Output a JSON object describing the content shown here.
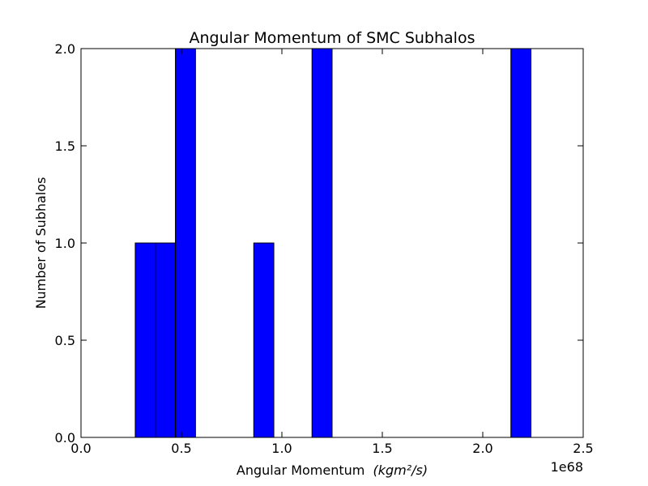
{
  "chart_data": {
    "type": "bar",
    "title": "Angular Momentum of SMC Subhalos",
    "xlabel": "Angular Momentum",
    "xlabel_math": "(kgm²/s)",
    "ylabel": "Number of Subhalos",
    "x_offset_label": "1e68",
    "xlim": [
      0.0,
      2.5
    ],
    "ylim": [
      0.0,
      2.0
    ],
    "x_ticks": [
      "0.0",
      "0.5",
      "1.0",
      "1.5",
      "2.0",
      "2.5"
    ],
    "y_ticks": [
      "0.0",
      "0.5",
      "1.0",
      "1.5",
      "2.0"
    ],
    "grid": false,
    "bars": [
      {
        "x_start": 0.27,
        "x_end": 0.37,
        "value": 1
      },
      {
        "x_start": 0.37,
        "x_end": 0.47,
        "value": 1
      },
      {
        "x_start": 0.47,
        "x_end": 0.57,
        "value": 2
      },
      {
        "x_start": 0.86,
        "x_end": 0.96,
        "value": 1
      },
      {
        "x_start": 1.15,
        "x_end": 1.25,
        "value": 2
      },
      {
        "x_start": 2.14,
        "x_end": 2.24,
        "value": 2
      }
    ],
    "bar_color": "#0000ff"
  }
}
